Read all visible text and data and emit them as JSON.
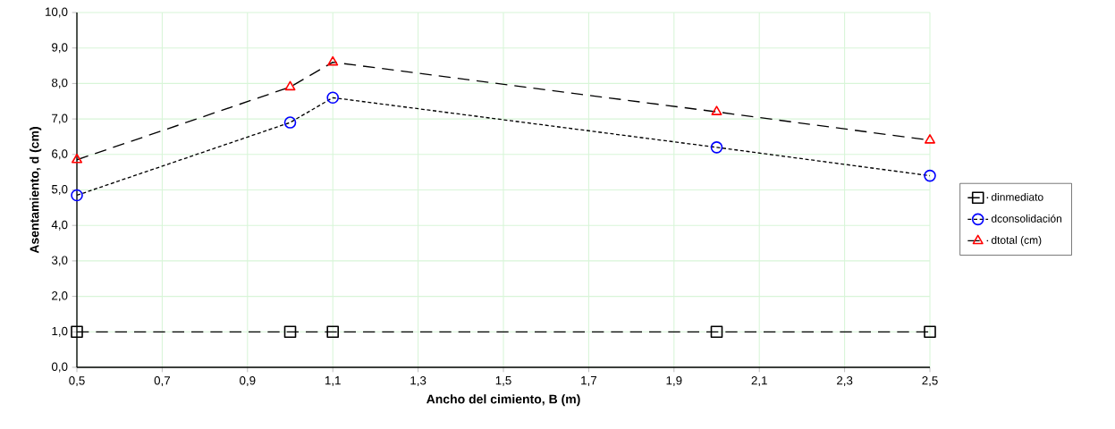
{
  "chart_data": {
    "type": "line",
    "xlabel": "Ancho del cimiento, B (m)",
    "ylabel": "Asentamiento, d (cm)",
    "x": [
      0.5,
      1.0,
      1.1,
      2.0,
      2.5
    ],
    "series": [
      {
        "name": "dinmediato",
        "color": "#000000",
        "marker": "square",
        "line_style": "dashed",
        "values": [
          1.0,
          1.0,
          1.0,
          1.0,
          1.0
        ]
      },
      {
        "name": "dconsolidación",
        "color": "#0000ff",
        "marker": "circle",
        "line_style": "dotted",
        "values": [
          4.85,
          6.9,
          7.6,
          6.2,
          5.4
        ]
      },
      {
        "name": "dtotal (cm)",
        "color": "#ff0000",
        "marker": "triangle",
        "line_style": "dashed",
        "values": [
          5.85,
          7.9,
          8.6,
          7.2,
          6.4
        ]
      }
    ],
    "xlim": [
      0.5,
      2.5
    ],
    "ylim": [
      0,
      10
    ],
    "xticks": [
      {
        "value": 0.5,
        "label": "0,5"
      },
      {
        "value": 0.7,
        "label": "0,7"
      },
      {
        "value": 0.9,
        "label": "0,9"
      },
      {
        "value": 1.1,
        "label": "1,1"
      },
      {
        "value": 1.3,
        "label": "1,3"
      },
      {
        "value": 1.5,
        "label": "1,5"
      },
      {
        "value": 1.7,
        "label": "1,7"
      },
      {
        "value": 1.9,
        "label": "1,9"
      },
      {
        "value": 2.1,
        "label": "2,1"
      },
      {
        "value": 2.3,
        "label": "2,3"
      },
      {
        "value": 2.5,
        "label": "2,5"
      }
    ],
    "yticks": [
      {
        "value": 0,
        "label": "0,0"
      },
      {
        "value": 1,
        "label": "1,0"
      },
      {
        "value": 2,
        "label": "2,0"
      },
      {
        "value": 3,
        "label": "3,0"
      },
      {
        "value": 4,
        "label": "4,0"
      },
      {
        "value": 5,
        "label": "5,0"
      },
      {
        "value": 6,
        "label": "6,0"
      },
      {
        "value": 7,
        "label": "7,0"
      },
      {
        "value": 8,
        "label": "8,0"
      },
      {
        "value": 9,
        "label": "9,0"
      },
      {
        "value": 10,
        "label": "10,0"
      }
    ],
    "grid": true,
    "legend": "right"
  }
}
